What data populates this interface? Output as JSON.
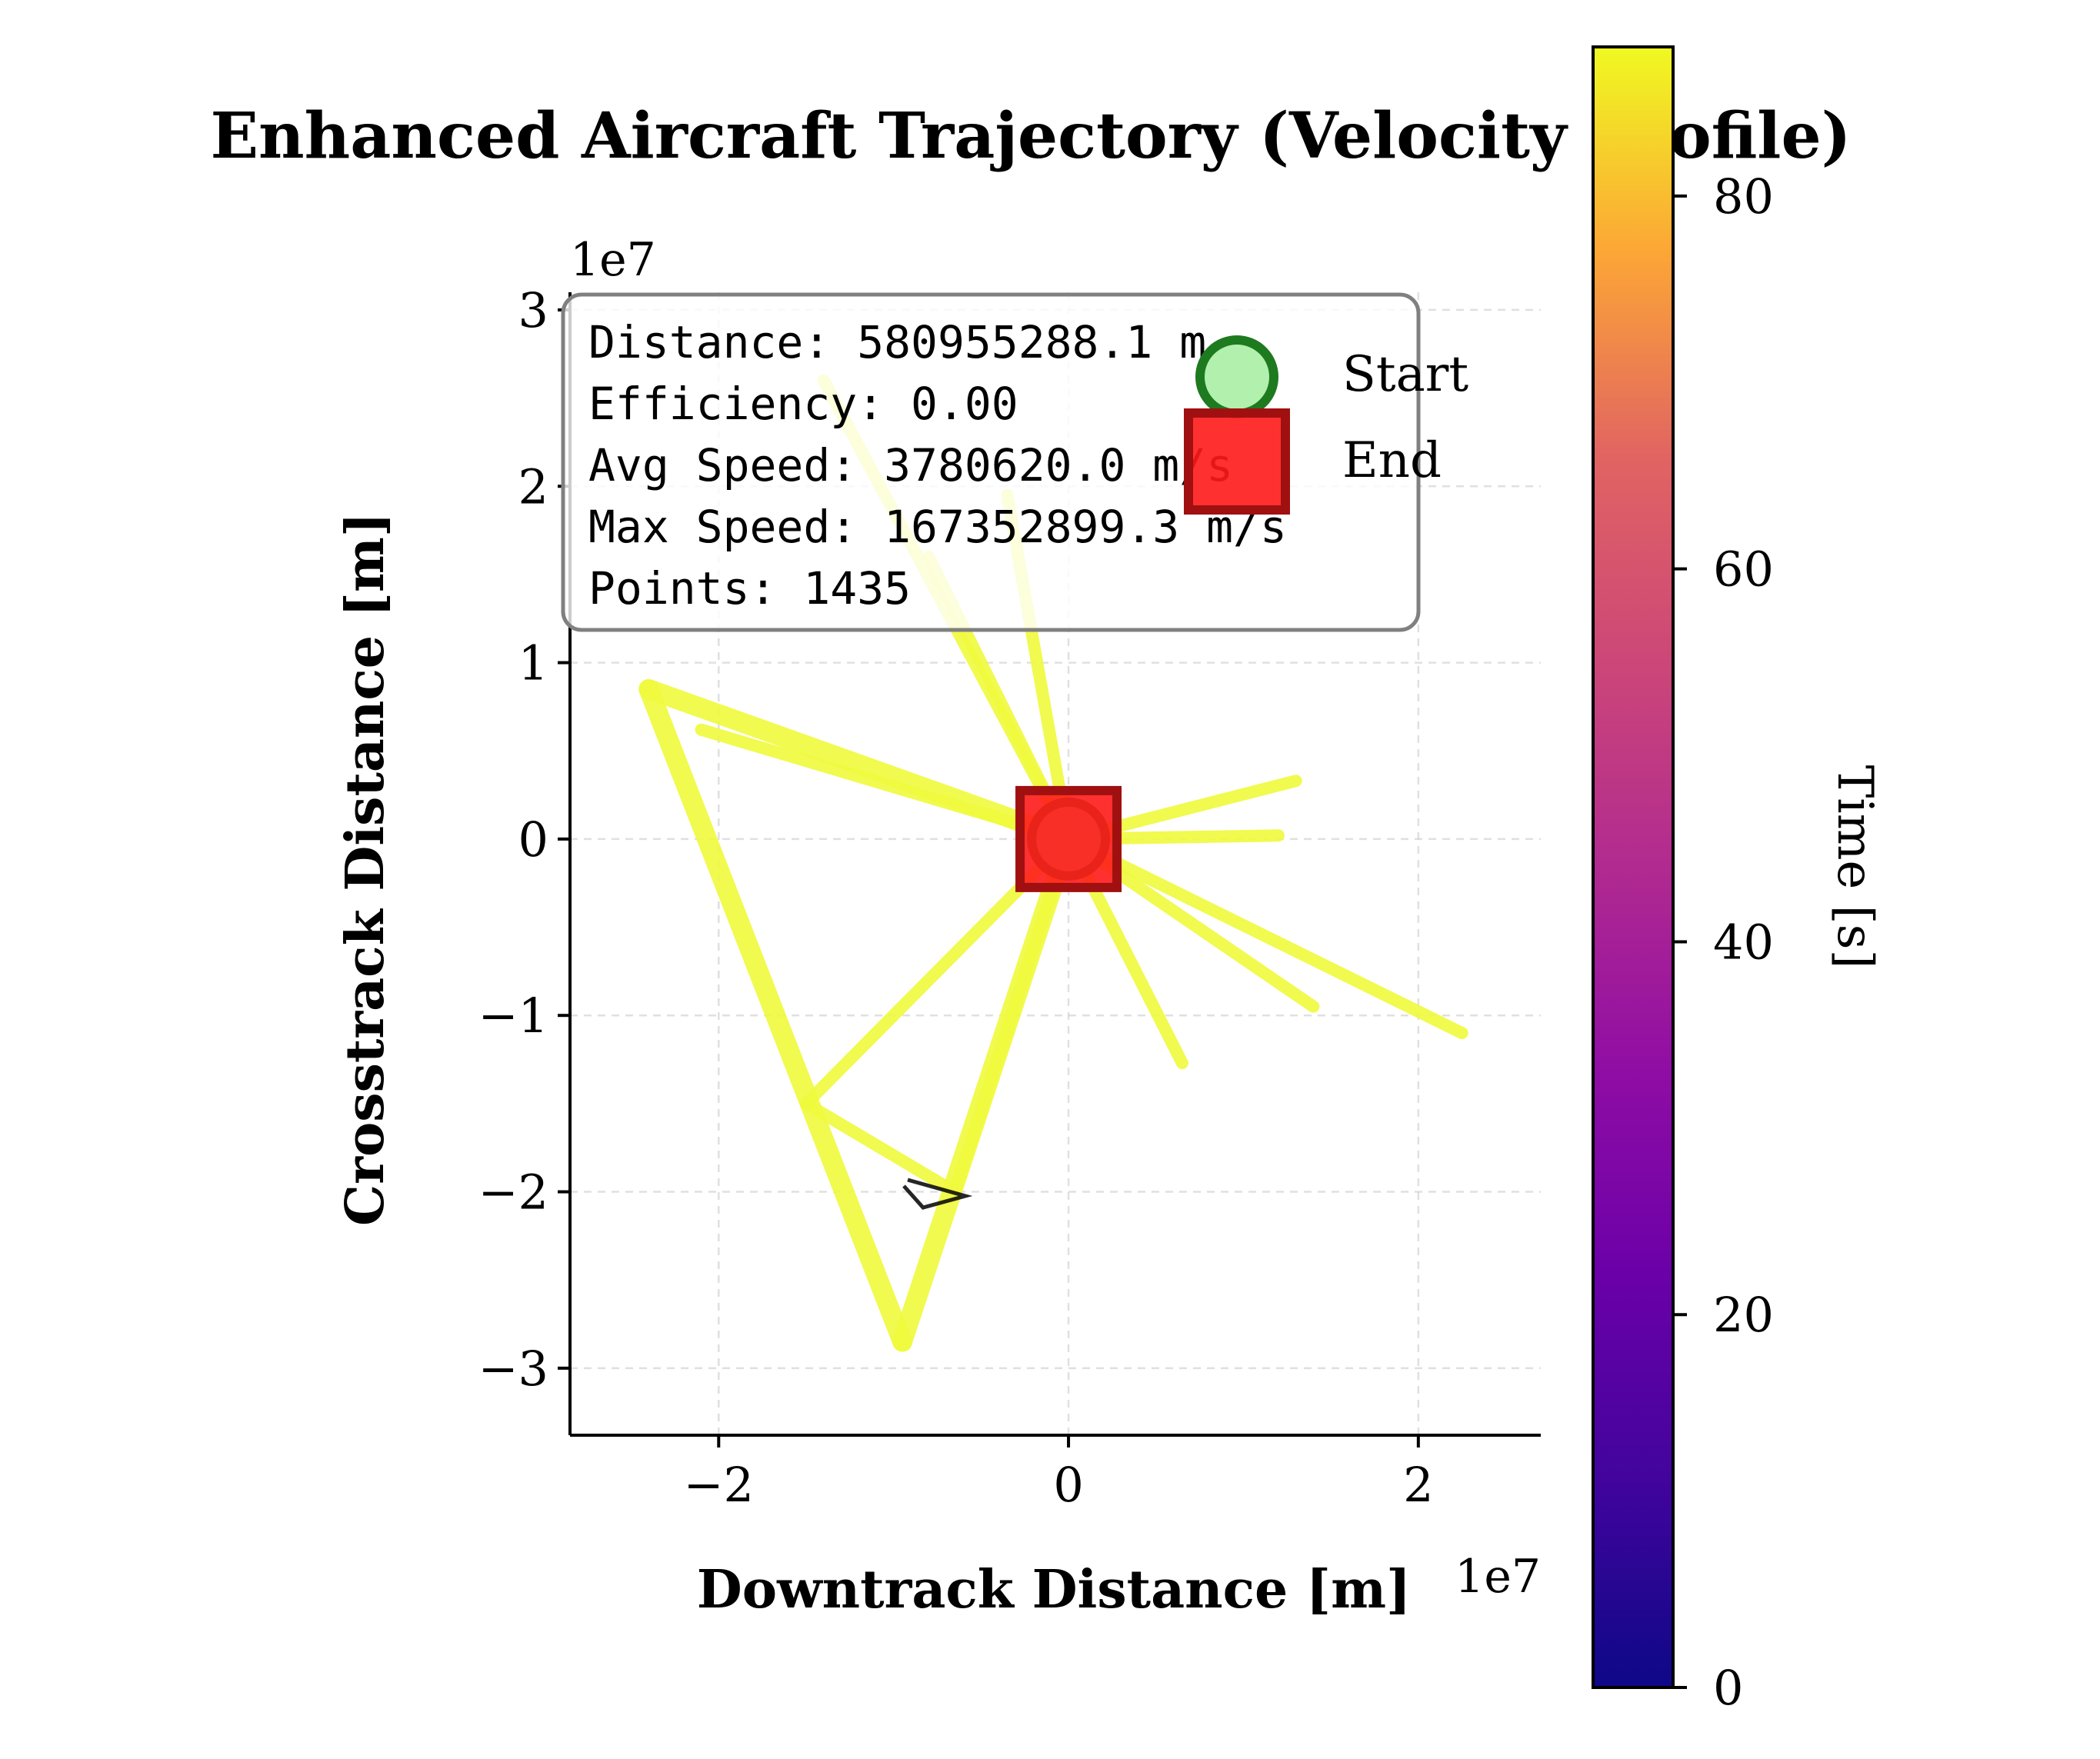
{
  "chart_data": {
    "type": "line",
    "title": "Enhanced Aircraft Trajectory (Velocity Profile)",
    "xlabel": "Downtrack Distance [m]",
    "ylabel": "Crosstrack Distance [m]",
    "x_offset_label": "1e7",
    "y_offset_label": "1e7",
    "xlim": [
      -2.85,
      2.7
    ],
    "ylim": [
      -3.38,
      3.1
    ],
    "xticks": [
      -2,
      0,
      2
    ],
    "xtick_labels": [
      "−2",
      "0",
      "2"
    ],
    "yticks": [
      -3,
      -2,
      -1,
      0,
      1,
      2,
      3
    ],
    "ytick_labels": [
      "−3",
      "−2",
      "−1",
      "0",
      "1",
      "2",
      "3"
    ],
    "grid": true,
    "trajectory_color": "#f0f93c",
    "trajectory_segments": [
      [
        [
          0,
          0
        ],
        [
          -2.4,
          0.85
        ]
      ],
      [
        [
          -2.4,
          0.85
        ],
        [
          -0.95,
          -2.85
        ]
      ],
      [
        [
          -0.95,
          -2.85
        ],
        [
          0,
          0
        ]
      ],
      [
        [
          0,
          0
        ],
        [
          -1.5,
          -1.5
        ]
      ],
      [
        [
          -1.5,
          -1.5
        ],
        [
          -0.65,
          -2.0
        ]
      ],
      [
        [
          -0.65,
          -2.0
        ],
        [
          0,
          0
        ]
      ],
      [
        [
          0,
          0
        ],
        [
          -2.1,
          0.62
        ]
      ],
      [
        [
          0,
          0
        ],
        [
          -0.8,
          1.6
        ]
      ],
      [
        [
          0,
          0
        ],
        [
          -1.4,
          2.6
        ]
      ],
      [
        [
          0,
          0
        ],
        [
          -0.35,
          1.95
        ]
      ],
      [
        [
          0,
          0
        ],
        [
          1.3,
          0.33
        ]
      ],
      [
        [
          0,
          0
        ],
        [
          1.2,
          0.02
        ]
      ],
      [
        [
          0,
          0
        ],
        [
          1.4,
          -0.95
        ]
      ],
      [
        [
          0,
          0
        ],
        [
          2.25,
          -1.1
        ]
      ],
      [
        [
          0,
          0
        ],
        [
          0.65,
          -1.27
        ]
      ]
    ],
    "start_point": {
      "x": 0,
      "y": 0,
      "label": "Start",
      "fill": "#a8eea4",
      "edge": "#1e7a1e"
    },
    "end_point": {
      "x": 0,
      "y": 0,
      "label": "End",
      "fill": "#ff1a1a",
      "edge": "#a01010"
    },
    "colorbar": {
      "label": "Time [s]",
      "colormap": "plasma",
      "min": 0,
      "max": 88,
      "ticks": [
        0,
        20,
        40,
        60,
        80
      ],
      "tick_labels": [
        "0",
        "20",
        "40",
        "60",
        "80"
      ]
    },
    "stats_lines": [
      "Distance: 580955288.1 m",
      "Efficiency: 0.00",
      "Avg Speed: 3780620.0 m/s",
      "Max Speed: 167352899.3 m/s",
      "Points: 1435"
    ],
    "legend": {
      "placement": "top-right",
      "entries": [
        "Start",
        "End"
      ]
    }
  }
}
